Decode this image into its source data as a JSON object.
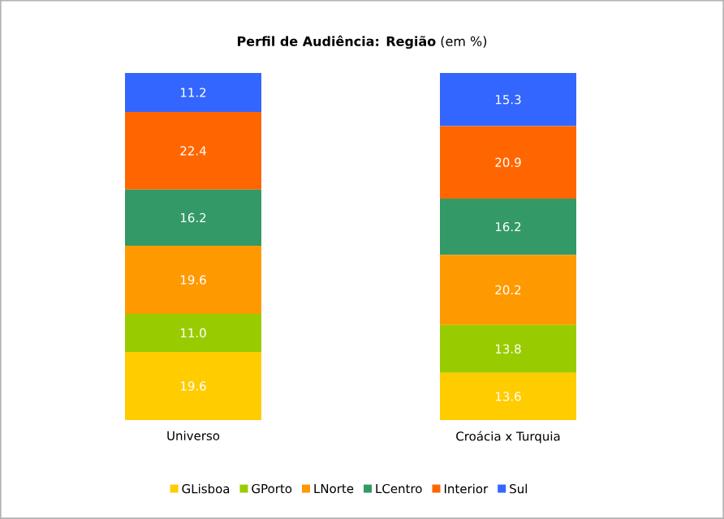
{
  "chart_data": {
    "type": "bar",
    "stacked": true,
    "title": "**Perfil de Audiência: Região** (em %)",
    "categories": [
      "Universo",
      "Croácia x Turquia"
    ],
    "series": [
      {
        "name": "GLisboa",
        "color": "#ffcc00",
        "values": [
          19.6,
          13.6
        ],
        "value_labels": [
          "19.6",
          "13.6"
        ]
      },
      {
        "name": "GPorto",
        "color": "#99cc00",
        "values": [
          11.0,
          13.8
        ],
        "value_labels": [
          "11.0",
          "13.8"
        ]
      },
      {
        "name": "LNorte",
        "color": "#ff9900",
        "values": [
          19.6,
          20.2
        ],
        "value_labels": [
          "19.6",
          "20.2"
        ]
      },
      {
        "name": "LCentro",
        "color": "#339966",
        "values": [
          16.2,
          16.2
        ],
        "value_labels": [
          "16.2",
          "16.2"
        ]
      },
      {
        "name": "Interior",
        "color": "#ff6600",
        "values": [
          22.4,
          20.9
        ],
        "value_labels": [
          "22.4",
          "20.9"
        ]
      },
      {
        "name": "Sul",
        "color": "#3366ff",
        "values": [
          11.2,
          15.3
        ],
        "value_labels": [
          "11.2",
          "15.3"
        ]
      }
    ],
    "legend": "bottom",
    "tick_labels": "x",
    "grid": false
  }
}
